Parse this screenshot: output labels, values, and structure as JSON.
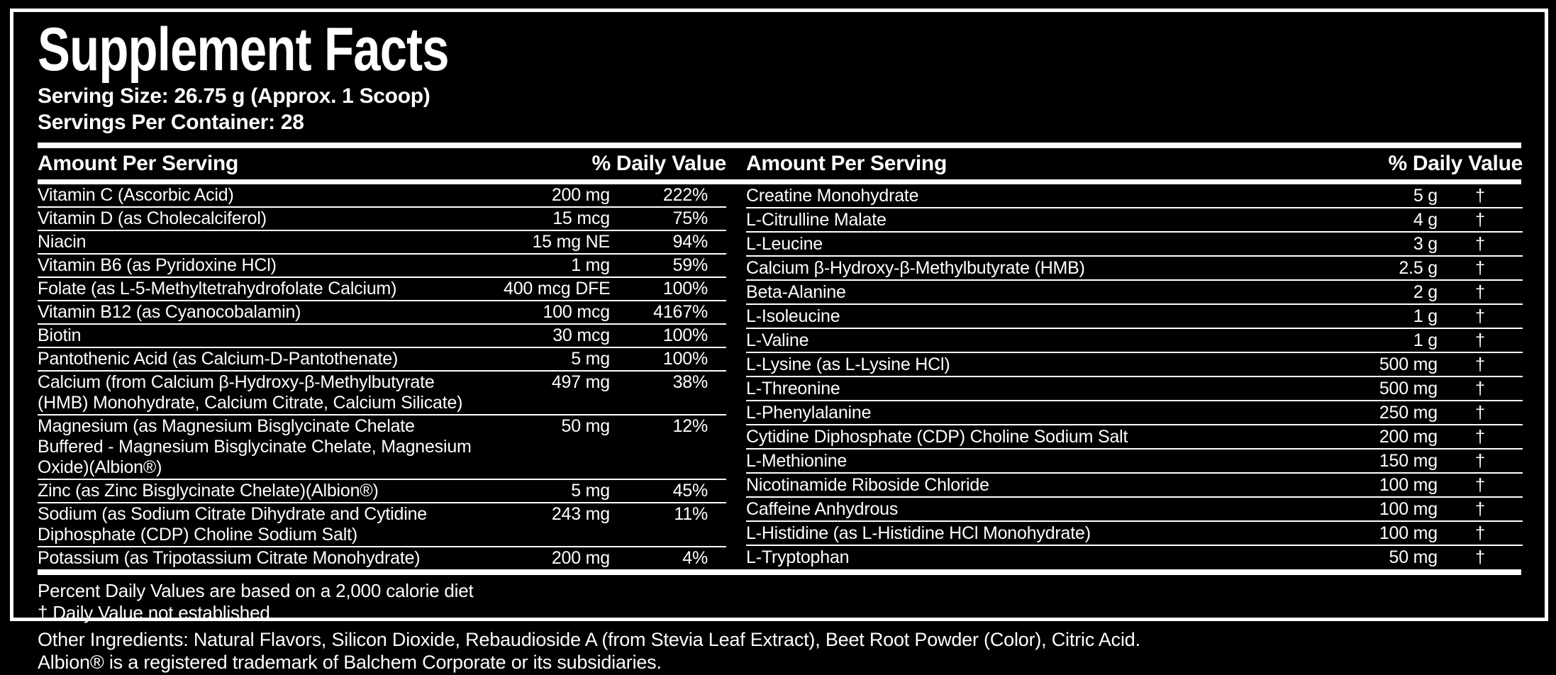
{
  "title": "Supplement Facts",
  "serving": {
    "size": "Serving Size: 26.75 g (Approx. 1 Scoop)",
    "per_container": "Servings Per Container: 28"
  },
  "headers": {
    "amount": "Amount Per Serving",
    "daily_value": "% Daily Value"
  },
  "left_rows": [
    {
      "name": "Vitamin C (Ascorbic Acid)",
      "amount": "200 mg",
      "dv": "222%"
    },
    {
      "name": "Vitamin D (as Cholecalciferol)",
      "amount": "15 mcg",
      "dv": "75%"
    },
    {
      "name": "Niacin",
      "amount": "15 mg NE",
      "dv": "94%"
    },
    {
      "name": "Vitamin B6 (as Pyridoxine HCl)",
      "amount": "1 mg",
      "dv": "59%"
    },
    {
      "name": "Folate (as L-5-Methyltetrahydrofolate Calcium)",
      "amount": "400 mcg DFE",
      "dv": "100%"
    },
    {
      "name": "Vitamin B12 (as Cyanocobalamin)",
      "amount": "100 mcg",
      "dv": "4167%"
    },
    {
      "name": "Biotin",
      "amount": "30 mcg",
      "dv": "100%"
    },
    {
      "name": "Pantothenic Acid (as Calcium-D-Pantothenate)",
      "amount": "5 mg",
      "dv": "100%"
    },
    {
      "name": "Calcium (from Calcium β-Hydroxy-β-Methylbutyrate\n(HMB) Monohydrate, Calcium Citrate, Calcium Silicate)",
      "amount": "497 mg",
      "dv": "38%"
    },
    {
      "name": "Magnesium (as Magnesium Bisglycinate Chelate\nBuffered - Magnesium Bisglycinate Chelate, Magnesium\nOxide)(Albion®)",
      "amount": "50 mg",
      "dv": "12%"
    },
    {
      "name": "Zinc (as Zinc Bisglycinate Chelate)(Albion®)",
      "amount": "5 mg",
      "dv": "45%"
    },
    {
      "name": "Sodium (as Sodium Citrate Dihydrate and Cytidine\nDiphosphate (CDP) Choline Sodium Salt)",
      "amount": "243 mg",
      "dv": "11%"
    },
    {
      "name": "Potassium (as Tripotassium Citrate Monohydrate)",
      "amount": "200 mg",
      "dv": "4%"
    }
  ],
  "right_rows": [
    {
      "name": "Creatine Monohydrate",
      "amount": "5 g",
      "dv": "†"
    },
    {
      "name": "L-Citrulline Malate",
      "amount": "4 g",
      "dv": "†"
    },
    {
      "name": "L-Leucine",
      "amount": "3 g",
      "dv": "†"
    },
    {
      "name": "Calcium β-Hydroxy-β-Methylbutyrate (HMB)",
      "amount": "2.5 g",
      "dv": "†"
    },
    {
      "name": "Beta-Alanine",
      "amount": "2 g",
      "dv": "†"
    },
    {
      "name": "L-Isoleucine",
      "amount": "1 g",
      "dv": "†"
    },
    {
      "name": "L-Valine",
      "amount": "1 g",
      "dv": "†"
    },
    {
      "name": "L-Lysine (as L-Lysine HCl)",
      "amount": "500 mg",
      "dv": "†"
    },
    {
      "name": "L-Threonine",
      "amount": "500 mg",
      "dv": "†"
    },
    {
      "name": "L-Phenylalanine",
      "amount": "250 mg",
      "dv": "†"
    },
    {
      "name": "Cytidine Diphosphate (CDP) Choline Sodium Salt",
      "amount": "200 mg",
      "dv": "†"
    },
    {
      "name": "L-Methionine",
      "amount": "150 mg",
      "dv": "†"
    },
    {
      "name": "Nicotinamide Riboside Chloride",
      "amount": "100 mg",
      "dv": "†"
    },
    {
      "name": "Caffeine Anhydrous",
      "amount": "100 mg",
      "dv": "†"
    },
    {
      "name": "L-Histidine (as L-Histidine HCl Monohydrate)",
      "amount": "100 mg",
      "dv": "†"
    },
    {
      "name": "L-Tryptophan",
      "amount": "50 mg",
      "dv": "†"
    }
  ],
  "footnotes": {
    "percent_dv": "Percent Daily Values are based on a 2,000 calorie diet",
    "dagger": "† Daily Value not established"
  },
  "other_ingredients": "Other Ingredients: Natural Flavors, Silicon Dioxide, Rebaudioside A (from Stevia Leaf Extract), Beet Root Powder (Color), Citric Acid.",
  "trademark_note": "Albion® is a registered trademark of Balchem Corporate or its subsidiaries.",
  "colors": {
    "background": "#000000",
    "text": "#ffffff",
    "rule": "#ffffff"
  }
}
